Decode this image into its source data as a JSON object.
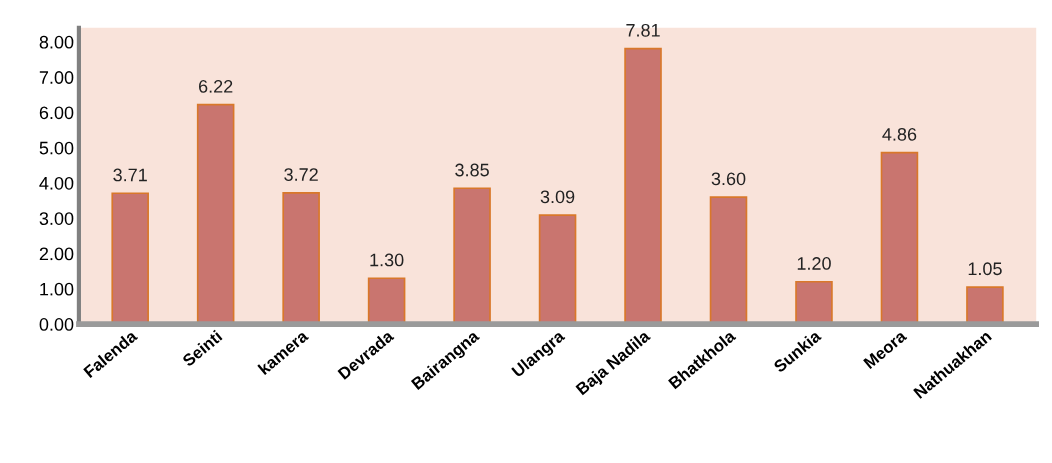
{
  "chart_data": {
    "type": "bar",
    "categories": [
      "Falenda",
      "Seinti",
      "kamera",
      "Devrada",
      "Bairangna",
      "Ulangra",
      "Baja Nadila",
      "Bhatkhola",
      "Sunkia",
      "Meora",
      "Nathuakhan"
    ],
    "values": [
      3.71,
      6.22,
      3.72,
      1.3,
      3.85,
      3.09,
      7.81,
      3.6,
      1.2,
      4.86,
      1.05
    ],
    "value_labels": [
      "3.71",
      "6.22",
      "3.72",
      "1.30",
      "3.85",
      "3.09",
      "7.81",
      "3.60",
      "1.20",
      "4.86",
      "1.05"
    ],
    "color": "#c9756f",
    "ylim": [
      0,
      8.4
    ],
    "yticks": [
      {
        "value": 0,
        "label": "0.00"
      },
      {
        "value": 1,
        "label": "1.00"
      },
      {
        "value": 2,
        "label": "2.00"
      },
      {
        "value": 3,
        "label": "3.00"
      },
      {
        "value": 4,
        "label": "4.00"
      },
      {
        "value": 5,
        "label": "5.00"
      },
      {
        "value": 6,
        "label": "6.00"
      },
      {
        "value": 7,
        "label": "7.00"
      },
      {
        "value": 8,
        "label": "8.00"
      }
    ],
    "grid": false
  }
}
